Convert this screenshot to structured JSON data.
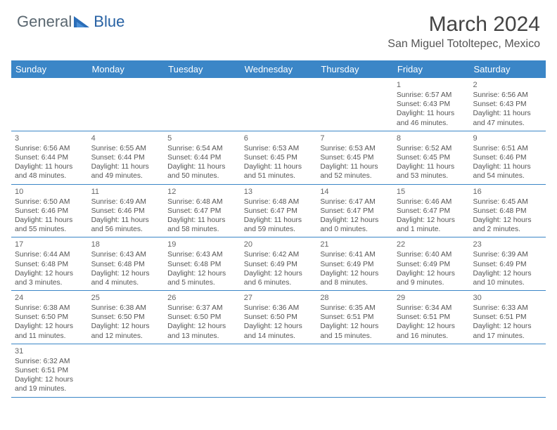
{
  "logo": {
    "part1": "General",
    "part2": "Blue"
  },
  "title": "March 2024",
  "location": "San Miguel Totoltepec, Mexico",
  "colors": {
    "header_bg": "#3b86c7",
    "header_text": "#ffffff",
    "border": "#3b86c7",
    "body_text": "#555555",
    "daynum_text": "#666666",
    "logo_gray": "#5a6770",
    "logo_blue": "#2761a3",
    "page_bg": "#ffffff"
  },
  "typography": {
    "title_fontsize": 30,
    "location_fontsize": 16,
    "header_fontsize": 13,
    "cell_fontsize": 10.3,
    "logo_fontsize": 22
  },
  "dayNames": [
    "Sunday",
    "Monday",
    "Tuesday",
    "Wednesday",
    "Thursday",
    "Friday",
    "Saturday"
  ],
  "weeks": [
    [
      null,
      null,
      null,
      null,
      null,
      {
        "d": "1",
        "sr": "Sunrise: 6:57 AM",
        "ss": "Sunset: 6:43 PM",
        "dl": "Daylight: 11 hours and 46 minutes."
      },
      {
        "d": "2",
        "sr": "Sunrise: 6:56 AM",
        "ss": "Sunset: 6:43 PM",
        "dl": "Daylight: 11 hours and 47 minutes."
      }
    ],
    [
      {
        "d": "3",
        "sr": "Sunrise: 6:56 AM",
        "ss": "Sunset: 6:44 PM",
        "dl": "Daylight: 11 hours and 48 minutes."
      },
      {
        "d": "4",
        "sr": "Sunrise: 6:55 AM",
        "ss": "Sunset: 6:44 PM",
        "dl": "Daylight: 11 hours and 49 minutes."
      },
      {
        "d": "5",
        "sr": "Sunrise: 6:54 AM",
        "ss": "Sunset: 6:44 PM",
        "dl": "Daylight: 11 hours and 50 minutes."
      },
      {
        "d": "6",
        "sr": "Sunrise: 6:53 AM",
        "ss": "Sunset: 6:45 PM",
        "dl": "Daylight: 11 hours and 51 minutes."
      },
      {
        "d": "7",
        "sr": "Sunrise: 6:53 AM",
        "ss": "Sunset: 6:45 PM",
        "dl": "Daylight: 11 hours and 52 minutes."
      },
      {
        "d": "8",
        "sr": "Sunrise: 6:52 AM",
        "ss": "Sunset: 6:45 PM",
        "dl": "Daylight: 11 hours and 53 minutes."
      },
      {
        "d": "9",
        "sr": "Sunrise: 6:51 AM",
        "ss": "Sunset: 6:46 PM",
        "dl": "Daylight: 11 hours and 54 minutes."
      }
    ],
    [
      {
        "d": "10",
        "sr": "Sunrise: 6:50 AM",
        "ss": "Sunset: 6:46 PM",
        "dl": "Daylight: 11 hours and 55 minutes."
      },
      {
        "d": "11",
        "sr": "Sunrise: 6:49 AM",
        "ss": "Sunset: 6:46 PM",
        "dl": "Daylight: 11 hours and 56 minutes."
      },
      {
        "d": "12",
        "sr": "Sunrise: 6:48 AM",
        "ss": "Sunset: 6:47 PM",
        "dl": "Daylight: 11 hours and 58 minutes."
      },
      {
        "d": "13",
        "sr": "Sunrise: 6:48 AM",
        "ss": "Sunset: 6:47 PM",
        "dl": "Daylight: 11 hours and 59 minutes."
      },
      {
        "d": "14",
        "sr": "Sunrise: 6:47 AM",
        "ss": "Sunset: 6:47 PM",
        "dl": "Daylight: 12 hours and 0 minutes."
      },
      {
        "d": "15",
        "sr": "Sunrise: 6:46 AM",
        "ss": "Sunset: 6:47 PM",
        "dl": "Daylight: 12 hours and 1 minute."
      },
      {
        "d": "16",
        "sr": "Sunrise: 6:45 AM",
        "ss": "Sunset: 6:48 PM",
        "dl": "Daylight: 12 hours and 2 minutes."
      }
    ],
    [
      {
        "d": "17",
        "sr": "Sunrise: 6:44 AM",
        "ss": "Sunset: 6:48 PM",
        "dl": "Daylight: 12 hours and 3 minutes."
      },
      {
        "d": "18",
        "sr": "Sunrise: 6:43 AM",
        "ss": "Sunset: 6:48 PM",
        "dl": "Daylight: 12 hours and 4 minutes."
      },
      {
        "d": "19",
        "sr": "Sunrise: 6:43 AM",
        "ss": "Sunset: 6:48 PM",
        "dl": "Daylight: 12 hours and 5 minutes."
      },
      {
        "d": "20",
        "sr": "Sunrise: 6:42 AM",
        "ss": "Sunset: 6:49 PM",
        "dl": "Daylight: 12 hours and 6 minutes."
      },
      {
        "d": "21",
        "sr": "Sunrise: 6:41 AM",
        "ss": "Sunset: 6:49 PM",
        "dl": "Daylight: 12 hours and 8 minutes."
      },
      {
        "d": "22",
        "sr": "Sunrise: 6:40 AM",
        "ss": "Sunset: 6:49 PM",
        "dl": "Daylight: 12 hours and 9 minutes."
      },
      {
        "d": "23",
        "sr": "Sunrise: 6:39 AM",
        "ss": "Sunset: 6:49 PM",
        "dl": "Daylight: 12 hours and 10 minutes."
      }
    ],
    [
      {
        "d": "24",
        "sr": "Sunrise: 6:38 AM",
        "ss": "Sunset: 6:50 PM",
        "dl": "Daylight: 12 hours and 11 minutes."
      },
      {
        "d": "25",
        "sr": "Sunrise: 6:38 AM",
        "ss": "Sunset: 6:50 PM",
        "dl": "Daylight: 12 hours and 12 minutes."
      },
      {
        "d": "26",
        "sr": "Sunrise: 6:37 AM",
        "ss": "Sunset: 6:50 PM",
        "dl": "Daylight: 12 hours and 13 minutes."
      },
      {
        "d": "27",
        "sr": "Sunrise: 6:36 AM",
        "ss": "Sunset: 6:50 PM",
        "dl": "Daylight: 12 hours and 14 minutes."
      },
      {
        "d": "28",
        "sr": "Sunrise: 6:35 AM",
        "ss": "Sunset: 6:51 PM",
        "dl": "Daylight: 12 hours and 15 minutes."
      },
      {
        "d": "29",
        "sr": "Sunrise: 6:34 AM",
        "ss": "Sunset: 6:51 PM",
        "dl": "Daylight: 12 hours and 16 minutes."
      },
      {
        "d": "30",
        "sr": "Sunrise: 6:33 AM",
        "ss": "Sunset: 6:51 PM",
        "dl": "Daylight: 12 hours and 17 minutes."
      }
    ],
    [
      {
        "d": "31",
        "sr": "Sunrise: 6:32 AM",
        "ss": "Sunset: 6:51 PM",
        "dl": "Daylight: 12 hours and 19 minutes."
      },
      null,
      null,
      null,
      null,
      null,
      null
    ]
  ]
}
